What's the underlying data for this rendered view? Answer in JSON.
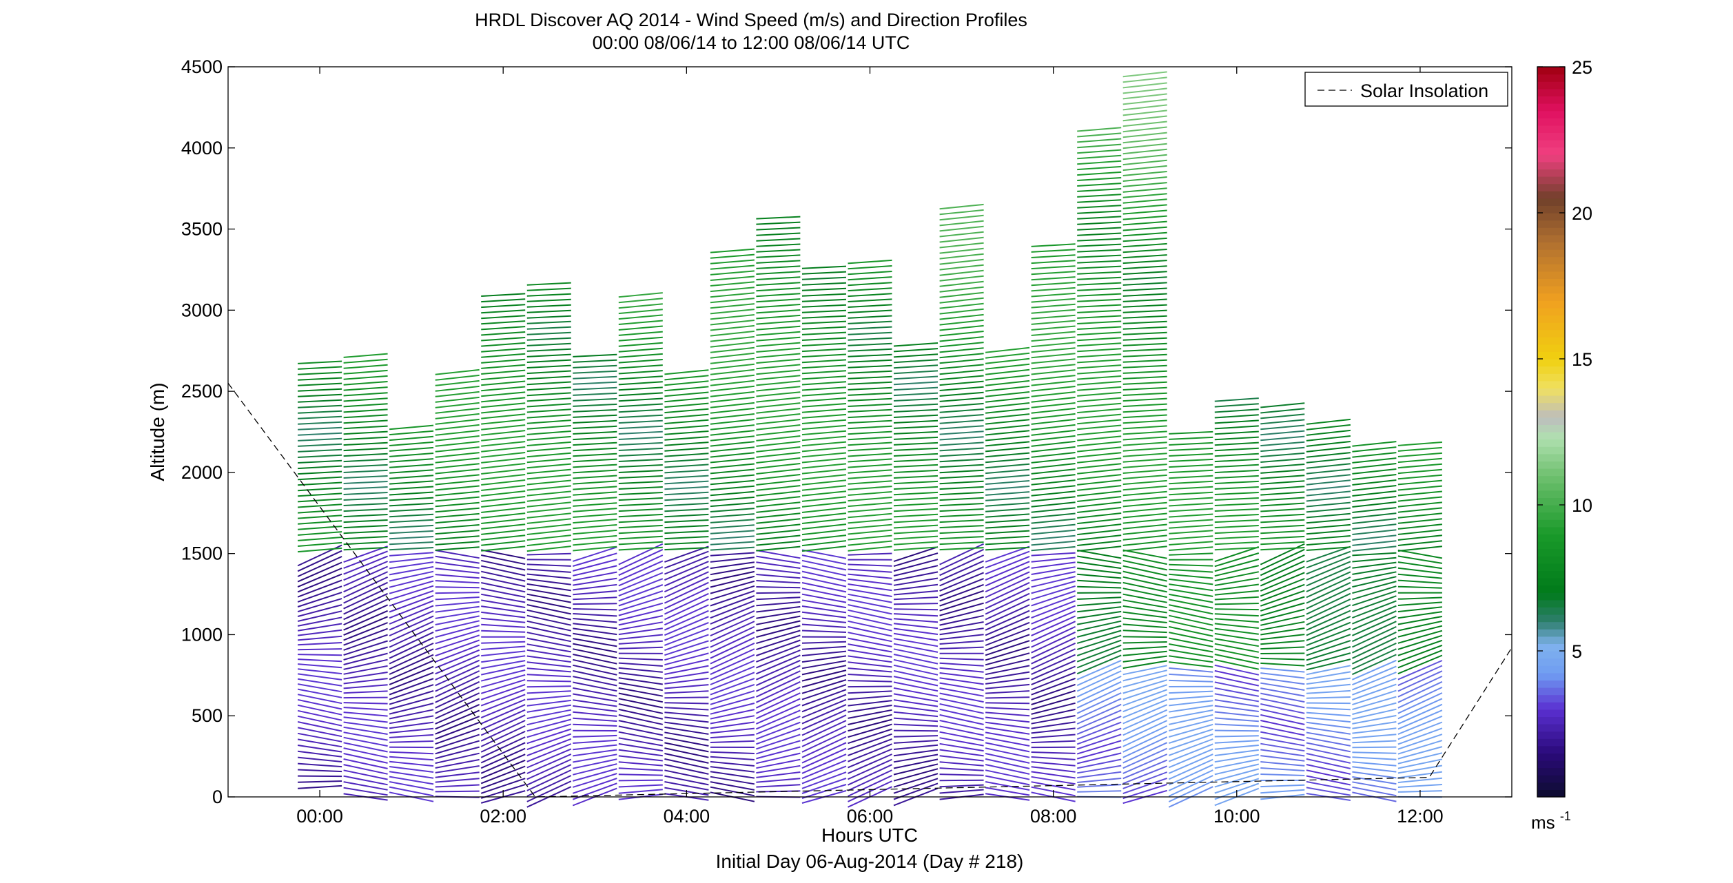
{
  "chart_data": {
    "type": "wind_barb_profile",
    "title": "HRDL Discover AQ 2014 - Wind Speed (m/s) and Direction Profiles",
    "subtitle": "00:00 08/06/14 to 12:00 08/06/14  UTC",
    "xlabel": "Hours UTC",
    "xlabel2": "Initial Day 06-Aug-2014 (Day # 218)",
    "ylabel": "Altitude (m)",
    "xlim": [
      -1.0,
      13.0
    ],
    "ylim": [
      0,
      4500
    ],
    "xticks": [
      {
        "value": 0,
        "label": "00:00"
      },
      {
        "value": 2,
        "label": "02:00"
      },
      {
        "value": 4,
        "label": "04:00"
      },
      {
        "value": 6,
        "label": "06:00"
      },
      {
        "value": 8,
        "label": "08:00"
      },
      {
        "value": 10,
        "label": "10:00"
      },
      {
        "value": 12,
        "label": "12:00"
      }
    ],
    "yticks": [
      {
        "value": 0,
        "label": "0"
      },
      {
        "value": 500,
        "label": "500"
      },
      {
        "value": 1000,
        "label": "1000"
      },
      {
        "value": 1500,
        "label": "1500"
      },
      {
        "value": 2000,
        "label": "2000"
      },
      {
        "value": 2500,
        "label": "2500"
      },
      {
        "value": 3000,
        "label": "3000"
      },
      {
        "value": 3500,
        "label": "3500"
      },
      {
        "value": 4000,
        "label": "4000"
      },
      {
        "value": 4500,
        "label": "4500"
      }
    ],
    "legend": {
      "label": "Solar Insolation",
      "position": "top-right"
    },
    "colorbar": {
      "min": 0,
      "max": 25,
      "ticks": [
        {
          "value": 5,
          "label": "5"
        },
        {
          "value": 10,
          "label": "10"
        },
        {
          "value": 15,
          "label": "15"
        },
        {
          "value": 20,
          "label": "20"
        },
        {
          "value": 25,
          "label": "25"
        }
      ],
      "unit_base": "ms",
      "unit_exp": "-1",
      "stops": [
        {
          "v": 0,
          "c": "#0c0c2e"
        },
        {
          "v": 1.5,
          "c": "#2a0a7a"
        },
        {
          "v": 3,
          "c": "#5a2fd0"
        },
        {
          "v": 4.2,
          "c": "#6f9cf2"
        },
        {
          "v": 5.2,
          "c": "#7fb2ee"
        },
        {
          "v": 6,
          "c": "#2f7f6f"
        },
        {
          "v": 7,
          "c": "#007a1a"
        },
        {
          "v": 9,
          "c": "#1a9a2a"
        },
        {
          "v": 11,
          "c": "#6fc06f"
        },
        {
          "v": 12.3,
          "c": "#b0e0b0"
        },
        {
          "v": 13,
          "c": "#bdbdbd"
        },
        {
          "v": 14,
          "c": "#f0e060"
        },
        {
          "v": 15,
          "c": "#f0d010"
        },
        {
          "v": 17,
          "c": "#f0a020"
        },
        {
          "v": 19,
          "c": "#b07030"
        },
        {
          "v": 20.5,
          "c": "#70402a"
        },
        {
          "v": 22,
          "c": "#f04080"
        },
        {
          "v": 23.5,
          "c": "#e01060"
        },
        {
          "v": 25,
          "c": "#a00010"
        }
      ]
    },
    "solar_insolation": [
      {
        "x": -1.0,
        "y": 2550
      },
      {
        "x": 2.35,
        "y": 0
      },
      {
        "x": 12.1,
        "y": 120
      },
      {
        "x": 13.0,
        "y": 920
      }
    ],
    "profiles": [
      {
        "time": 0.0,
        "top": 2700,
        "bottom": 60
      },
      {
        "time": 0.5,
        "top": 2750,
        "bottom": 0
      },
      {
        "time": 1.0,
        "top": 2300,
        "bottom": 0
      },
      {
        "time": 1.5,
        "top": 2650,
        "bottom": 0
      },
      {
        "time": 2.0,
        "top": 3120,
        "bottom": 0
      },
      {
        "time": 2.5,
        "top": 3180,
        "bottom": 0
      },
      {
        "time": 3.0,
        "top": 2750,
        "bottom": 0
      },
      {
        "time": 3.5,
        "top": 3120,
        "bottom": 0
      },
      {
        "time": 4.0,
        "top": 2650,
        "bottom": 0
      },
      {
        "time": 4.5,
        "top": 3380,
        "bottom": 0
      },
      {
        "time": 5.0,
        "top": 3580,
        "bottom": 0
      },
      {
        "time": 5.5,
        "top": 3280,
        "bottom": 0
      },
      {
        "time": 6.0,
        "top": 3320,
        "bottom": 0
      },
      {
        "time": 6.5,
        "top": 2800,
        "bottom": 0
      },
      {
        "time": 7.0,
        "top": 3640,
        "bottom": 0
      },
      {
        "time": 7.5,
        "top": 2780,
        "bottom": 0
      },
      {
        "time": 8.0,
        "top": 3420,
        "bottom": 0
      },
      {
        "time": 8.5,
        "top": 4120,
        "bottom": 0
      },
      {
        "time": 9.0,
        "top": 4470,
        "bottom": 0
      },
      {
        "time": 9.5,
        "top": 2250,
        "bottom": 0
      },
      {
        "time": 10.0,
        "top": 2450,
        "bottom": 0
      },
      {
        "time": 10.5,
        "top": 2420,
        "bottom": 0
      },
      {
        "time": 11.0,
        "top": 2340,
        "bottom": 0
      },
      {
        "time": 11.5,
        "top": 2200,
        "bottom": 0
      },
      {
        "time": 12.0,
        "top": 2180,
        "bottom": 0
      }
    ]
  }
}
